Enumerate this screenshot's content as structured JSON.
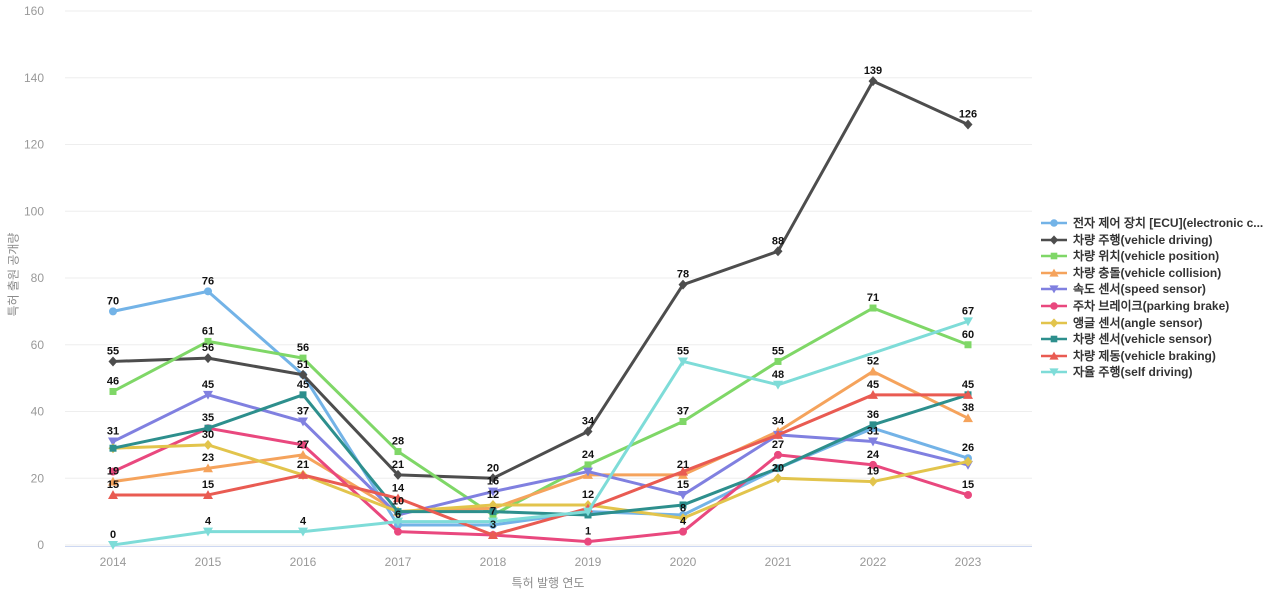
{
  "chart_data": {
    "type": "line",
    "title": "",
    "xlabel": "특허 발행 연도",
    "ylabel": "특허 출원 공개량",
    "x": [
      "2014",
      "2015",
      "2016",
      "2017",
      "2018",
      "2019",
      "2020",
      "2021",
      "2022",
      "2023"
    ],
    "ylim": [
      0,
      160
    ],
    "yticks": [
      0,
      20,
      40,
      60,
      80,
      100,
      120,
      140,
      160
    ],
    "grid": true,
    "legend_position": "right",
    "series": [
      {
        "name": "전자 제어 장치 [ECU](electronic c...",
        "color": "#73b3e7",
        "marker": "circle",
        "values": [
          70,
          76,
          51,
          6,
          6,
          10,
          9,
          23,
          35,
          26
        ],
        "label_shown": [
          1,
          1,
          0,
          1,
          0,
          0,
          0,
          0,
          0,
          1
        ]
      },
      {
        "name": "차량 주행(vehicle driving)",
        "color": "#4d4d4d",
        "marker": "diamond",
        "values": [
          55,
          56,
          51,
          21,
          20,
          34,
          78,
          88,
          139,
          126
        ],
        "label_shown": [
          1,
          1,
          1,
          1,
          1,
          1,
          1,
          1,
          1,
          1
        ]
      },
      {
        "name": "차량 위치(vehicle position)",
        "color": "#7fd767",
        "marker": "square",
        "values": [
          46,
          61,
          56,
          28,
          9,
          24,
          37,
          55,
          71,
          60
        ],
        "label_shown": [
          1,
          1,
          1,
          1,
          0,
          1,
          1,
          1,
          1,
          1
        ]
      },
      {
        "name": "차량 충돌(vehicle collision)",
        "color": "#f5a35c",
        "marker": "triangle",
        "values": [
          19,
          23,
          27,
          10,
          11,
          21,
          21,
          34,
          52,
          38
        ],
        "label_shown": [
          1,
          1,
          1,
          0,
          0,
          0,
          1,
          1,
          1,
          1
        ]
      },
      {
        "name": "속도 센서(speed sensor)",
        "color": "#8080e0",
        "marker": "triangle-down",
        "values": [
          31,
          45,
          37,
          9,
          16,
          22,
          15,
          33,
          31,
          24
        ],
        "label_shown": [
          1,
          1,
          1,
          0,
          1,
          0,
          1,
          0,
          1,
          0
        ]
      },
      {
        "name": "주차 브레이크(parking brake)",
        "color": "#e9487e",
        "marker": "circle",
        "values": [
          22,
          35,
          30,
          4,
          3,
          1,
          4,
          27,
          24,
          15
        ],
        "label_shown": [
          0,
          0,
          0,
          0,
          0,
          1,
          1,
          1,
          1,
          1
        ]
      },
      {
        "name": "앵글 센서(angle sensor)",
        "color": "#e2c44c",
        "marker": "diamond",
        "values": [
          29,
          30,
          21,
          10,
          12,
          12,
          8,
          20,
          19,
          25
        ],
        "label_shown": [
          0,
          1,
          0,
          0,
          1,
          1,
          1,
          1,
          1,
          0
        ]
      },
      {
        "name": "차량 센서(vehicle sensor)",
        "color": "#2d8f8d",
        "marker": "square",
        "values": [
          29,
          35,
          45,
          10,
          10,
          9,
          12,
          23,
          36,
          45
        ],
        "label_shown": [
          0,
          1,
          1,
          1,
          0,
          0,
          0,
          0,
          1,
          0
        ]
      },
      {
        "name": "차량 제동(vehicle braking)",
        "color": "#e95b52",
        "marker": "triangle",
        "values": [
          15,
          15,
          21,
          14,
          3,
          11,
          22,
          33,
          45,
          45
        ],
        "label_shown": [
          1,
          1,
          1,
          1,
          1,
          0,
          0,
          0,
          1,
          1
        ]
      },
      {
        "name": "자율 주행(self driving)",
        "color": "#7edcd8",
        "marker": "triangle-down",
        "values": [
          0,
          4,
          4,
          7,
          7,
          10,
          55,
          48,
          null,
          67
        ],
        "label_shown": [
          1,
          1,
          1,
          0,
          1,
          0,
          1,
          1,
          0,
          1
        ]
      }
    ],
    "style": {
      "grid_color": "#eeeeee",
      "axis_line_color": "#cdd8f2",
      "tick_label_color": "#999999",
      "axis_title_color": "#8b8b8b",
      "data_label_color": "#111111",
      "legend_text_color": "#333333"
    }
  }
}
